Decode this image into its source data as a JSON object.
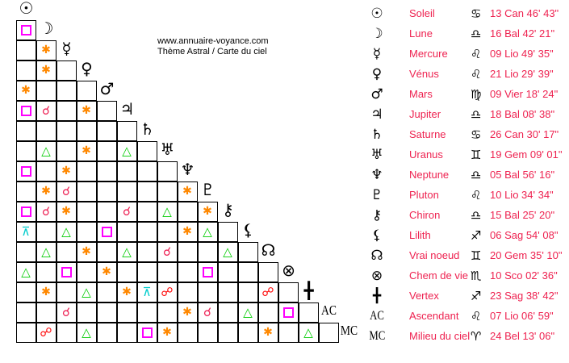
{
  "credit": {
    "site": "www.annuaire-voyance.com",
    "subtitle": "Thème Astral / Carte du ciel"
  },
  "aspect_colors": {
    "square": "#ff00ff",
    "sextile": "#ff8800",
    "conjunction": "#ee2255",
    "trine": "#00cc00",
    "opposition": "#ff0000",
    "quincunx": "#00cccc"
  },
  "aspect_glyphs": {
    "square": "",
    "sextile": "✱",
    "conjunction": "☌",
    "trine": "△",
    "opposition": "☍",
    "quincunx": "⊼"
  },
  "planets": [
    {
      "glyph": "☉",
      "name": "Soleil",
      "sign": "♋",
      "position": "13 Can 46' 43\""
    },
    {
      "glyph": "☽",
      "name": "Lune",
      "sign": "♎",
      "position": "16 Bal 42' 21\""
    },
    {
      "glyph": "☿",
      "name": "Mercure",
      "sign": "♌",
      "position": "09 Lio 49' 35\""
    },
    {
      "glyph": "♀",
      "name": "Vénus",
      "sign": "♌",
      "position": "21 Lio 29' 39\""
    },
    {
      "glyph": "♂",
      "name": "Mars",
      "sign": "♍",
      "position": "09 Vier 18' 24\""
    },
    {
      "glyph": "♃",
      "name": "Jupiter",
      "sign": "♎",
      "position": "18 Bal 08' 38\""
    },
    {
      "glyph": "♄",
      "name": "Saturne",
      "sign": "♋",
      "position": "26 Can 30' 17\""
    },
    {
      "glyph": "♅",
      "name": "Uranus",
      "sign": "♊",
      "position": "19 Gem 09' 01\""
    },
    {
      "glyph": "♆",
      "name": "Neptune",
      "sign": "♎",
      "position": "05 Bal 56' 16\""
    },
    {
      "glyph": "♇",
      "name": "Pluton",
      "sign": "♌",
      "position": "10 Lio 34' 34\""
    },
    {
      "glyph": "⚷",
      "name": "Chiron",
      "sign": "♎",
      "position": "15 Bal 25' 20\""
    },
    {
      "glyph": "⚸",
      "name": "Lilith",
      "sign": "♐",
      "position": "06 Sag 54' 08\""
    },
    {
      "glyph": "☊",
      "name": "Vrai noeud",
      "sign": "♊",
      "position": "20 Gem 35' 10\""
    },
    {
      "glyph": "⊗",
      "name": "Chem de vie",
      "sign": "♏",
      "position": "10 Sco 02' 36\""
    },
    {
      "glyph": "╋",
      "name": "Vertex",
      "sign": "♐",
      "position": "23 Sag 38' 42\""
    },
    {
      "glyph": "AC",
      "name": "Ascendant",
      "sign": "♌",
      "position": "07 Lio 06' 59\""
    },
    {
      "glyph": "MC",
      "name": "Milieu du ciel",
      "sign": "♈",
      "position": "24 Bel 13' 06\""
    }
  ],
  "aspects": [
    [
      "square"
    ],
    [
      "",
      "sextile"
    ],
    [
      "",
      "sextile",
      ""
    ],
    [
      "sextile",
      "",
      "",
      ""
    ],
    [
      "square",
      "conjunction",
      "",
      "sextile",
      ""
    ],
    [
      "",
      "",
      "",
      "",
      "",
      ""
    ],
    [
      "",
      "trine",
      "",
      "sextile",
      "",
      "trine",
      ""
    ],
    [
      "square",
      "",
      "sextile",
      "",
      "",
      "",
      "",
      ""
    ],
    [
      "",
      "sextile",
      "conjunction",
      "",
      "",
      "",
      "",
      "",
      "sextile"
    ],
    [
      "square",
      "conjunction",
      "sextile",
      "",
      "",
      "conjunction",
      "",
      "trine",
      "",
      "sextile"
    ],
    [
      "quincunx",
      "",
      "trine",
      "",
      "square",
      "",
      "",
      "",
      "sextile",
      "trine",
      ""
    ],
    [
      "",
      "trine",
      "",
      "sextile",
      "",
      "trine",
      "",
      "conjunction",
      "",
      "",
      "trine",
      ""
    ],
    [
      "trine",
      "",
      "square",
      "",
      "sextile",
      "",
      "",
      "",
      "",
      "square",
      "",
      "",
      ""
    ],
    [
      "",
      "sextile",
      "",
      "trine",
      "",
      "sextile",
      "quincunx",
      "opposition",
      "",
      "",
      "",
      "",
      "opposition",
      ""
    ],
    [
      "",
      "",
      "conjunction",
      "",
      "",
      "",
      "",
      "",
      "sextile",
      "conjunction",
      "",
      "trine",
      "",
      "square",
      ""
    ],
    [
      "",
      "opposition",
      "",
      "trine",
      "",
      "",
      "square",
      "sextile",
      "",
      "",
      "",
      "",
      "sextile",
      "",
      "trine",
      ""
    ]
  ]
}
